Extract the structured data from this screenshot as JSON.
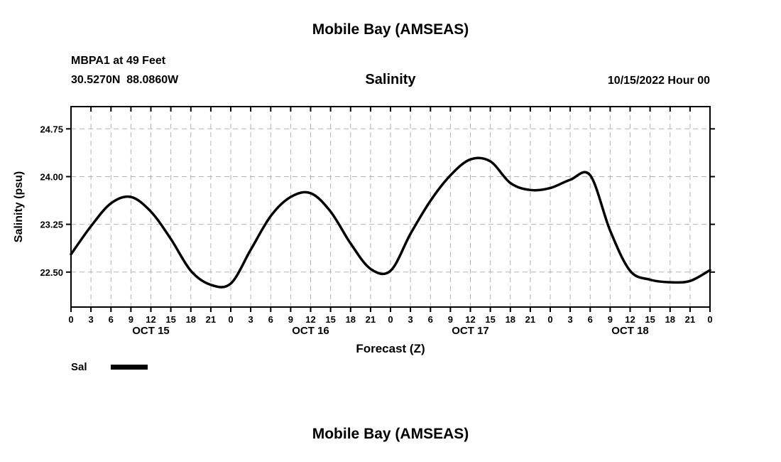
{
  "page": {
    "top_title": "Mobile Bay (AMSEAS)",
    "bottom_title": "Mobile Bay (AMSEAS)"
  },
  "header": {
    "station_line1": "MBPA1 at 49 Feet",
    "station_line2": "30.5270N  88.0860W",
    "plot_title": "Salinity",
    "run_datetime": "10/15/2022 Hour 00"
  },
  "chart_data": {
    "type": "line",
    "title": "Salinity",
    "xlabel": "Forecast (Z)",
    "ylabel": "Salinity (psu)",
    "x": [
      0,
      3,
      6,
      9,
      12,
      15,
      18,
      21,
      24,
      27,
      30,
      33,
      36,
      39,
      42,
      45,
      48,
      51,
      54,
      57,
      60,
      63,
      66,
      69,
      72,
      75,
      78,
      81,
      84,
      87,
      90,
      93,
      96
    ],
    "series": [
      {
        "name": "Sal",
        "color": "#000000",
        "width": 3.5,
        "values": [
          22.78,
          23.22,
          23.58,
          23.68,
          23.45,
          23.02,
          22.52,
          22.3,
          22.32,
          22.85,
          23.38,
          23.68,
          23.74,
          23.45,
          22.95,
          22.55,
          22.52,
          23.1,
          23.62,
          24.02,
          24.27,
          24.24,
          23.9,
          23.79,
          23.82,
          23.95,
          24.02,
          23.15,
          22.52,
          22.38,
          22.34,
          22.36,
          22.53
        ]
      }
    ],
    "xlim": [
      0,
      96
    ],
    "ylim": [
      21.95,
      25.1
    ],
    "yticks": [
      22.5,
      23.25,
      24.0,
      24.75
    ],
    "ytick_labels": [
      "22.50",
      "23.25",
      "24.00",
      "24.75"
    ],
    "xticks": [
      0,
      3,
      6,
      9,
      12,
      15,
      18,
      21,
      24,
      27,
      30,
      33,
      36,
      39,
      42,
      45,
      48,
      51,
      54,
      57,
      60,
      63,
      66,
      69,
      72,
      75,
      78,
      81,
      84,
      87,
      90,
      93,
      96
    ],
    "xtick_labels": [
      "0",
      "3",
      "6",
      "9",
      "12",
      "15",
      "18",
      "21",
      "0",
      "3",
      "6",
      "9",
      "12",
      "15",
      "18",
      "21",
      "0",
      "3",
      "6",
      "9",
      "12",
      "15",
      "18",
      "21",
      "0",
      "3",
      "6",
      "9",
      "12",
      "15",
      "18",
      "21",
      "0"
    ],
    "day_labels": [
      {
        "label": "OCT 15",
        "hour": 12
      },
      {
        "label": "OCT 16",
        "hour": 36
      },
      {
        "label": "OCT 17",
        "hour": 60
      },
      {
        "label": "OCT 18",
        "hour": 84
      }
    ],
    "legend": [
      {
        "label": "Sal"
      }
    ],
    "grid": true,
    "grid_color": "#b3b3b3",
    "legend_position": "bottom-left"
  }
}
